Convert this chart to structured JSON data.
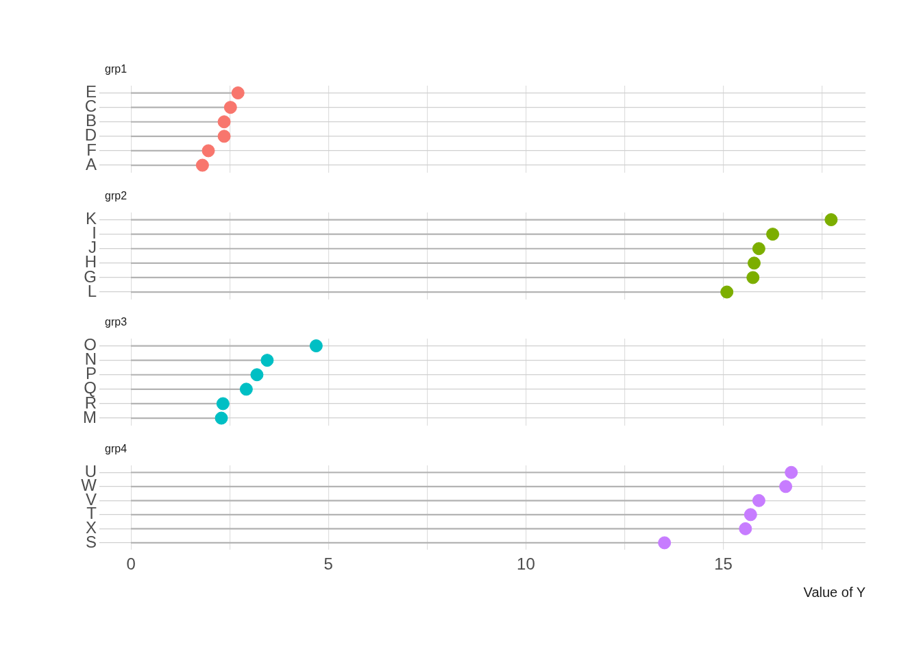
{
  "chart_data": [
    {
      "type": "lollipop",
      "orientation": "horizontal",
      "title": "grp1",
      "categories": [
        "E",
        "C",
        "B",
        "D",
        "F",
        "A"
      ],
      "series": [
        {
          "color": "#f8766d",
          "values": [
            2.71,
            2.52,
            2.36,
            2.36,
            1.96,
            1.81
          ]
        }
      ],
      "xlim": [
        -0.8,
        18.6
      ],
      "xticks": [
        0,
        {
          "value": 2.5,
          "label": null
        },
        5,
        {
          "value": 7.5,
          "label": null
        },
        10,
        {
          "value": 12.5,
          "label": null
        },
        15,
        {
          "value": 17.5,
          "label": null
        }
      ],
      "grid": true,
      "tick_labels": "y",
      "marker": "circle"
    },
    {
      "type": "lollipop",
      "orientation": "horizontal",
      "title": "grp2",
      "categories": [
        "K",
        "I",
        "J",
        "H",
        "G",
        "L"
      ],
      "series": [
        {
          "color": "#7cae00",
          "values": [
            17.73,
            16.25,
            15.9,
            15.78,
            15.75,
            15.09
          ]
        }
      ],
      "xlim": [
        -0.8,
        18.6
      ],
      "xticks": [
        0,
        {
          "value": 2.5,
          "label": null
        },
        5,
        {
          "value": 7.5,
          "label": null
        },
        10,
        {
          "value": 12.5,
          "label": null
        },
        15,
        {
          "value": 17.5,
          "label": null
        }
      ],
      "grid": true,
      "tick_labels": "y",
      "marker": "circle"
    },
    {
      "type": "lollipop",
      "orientation": "horizontal",
      "title": "grp3",
      "categories": [
        "O",
        "N",
        "P",
        "Q",
        "R",
        "M"
      ],
      "series": [
        {
          "color": "#00bfc4",
          "values": [
            4.69,
            3.45,
            3.19,
            2.92,
            2.33,
            2.29
          ]
        }
      ],
      "xlim": [
        -0.8,
        18.6
      ],
      "xticks": [
        0,
        {
          "value": 2.5,
          "label": null
        },
        5,
        {
          "value": 7.5,
          "label": null
        },
        10,
        {
          "value": 12.5,
          "label": null
        },
        15,
        {
          "value": 17.5,
          "label": null
        }
      ],
      "grid": true,
      "tick_labels": "y",
      "marker": "circle"
    },
    {
      "type": "lollipop",
      "orientation": "horizontal",
      "title": "grp4",
      "xlabel": "Value of Y",
      "categories": [
        "U",
        "W",
        "V",
        "T",
        "X",
        "S"
      ],
      "series": [
        {
          "color": "#c77cff",
          "values": [
            16.72,
            16.58,
            15.9,
            15.69,
            15.56,
            13.51
          ]
        }
      ],
      "xlim": [
        -0.8,
        18.6
      ],
      "xticks": [
        0,
        {
          "value": 2.5,
          "label": null
        },
        5,
        {
          "value": 7.5,
          "label": null
        },
        10,
        {
          "value": 12.5,
          "label": null
        },
        15,
        {
          "value": 17.5,
          "label": null
        }
      ],
      "grid": true,
      "marker": "circle"
    }
  ]
}
